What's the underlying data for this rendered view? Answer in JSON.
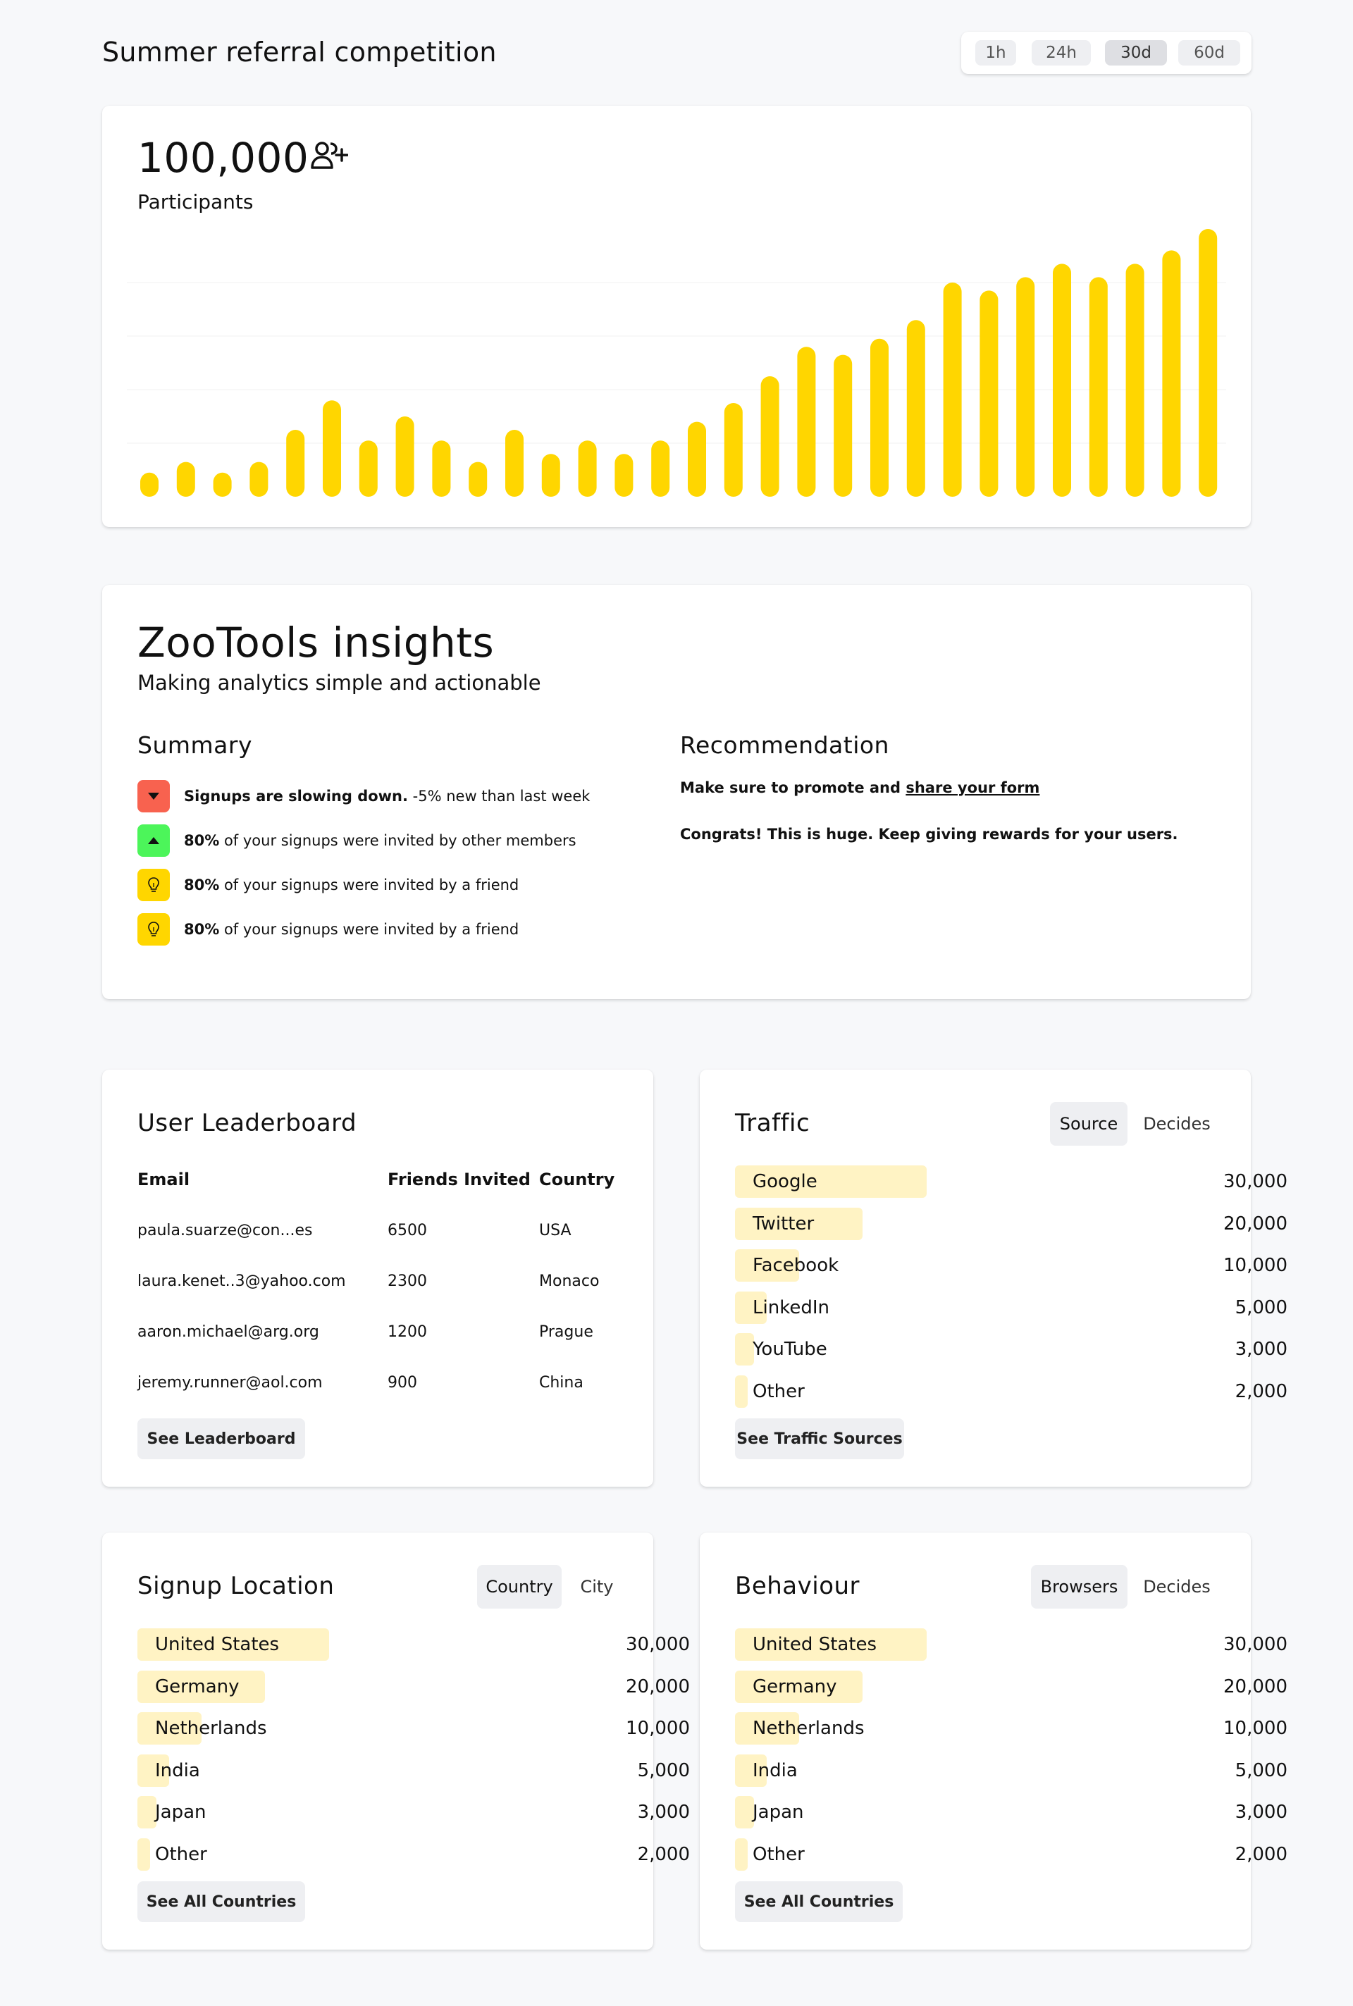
{
  "header": {
    "title": "Summer referral competition",
    "ranges": [
      {
        "label": "1h",
        "active": false
      },
      {
        "label": "24h",
        "active": false
      },
      {
        "label": "30d",
        "active": true
      },
      {
        "label": "60d",
        "active": false
      }
    ]
  },
  "participants": {
    "count": "100,000",
    "label": "Participants",
    "icon": "user-plus-icon"
  },
  "chart_data": {
    "type": "bar",
    "title": "",
    "xlabel": "",
    "ylabel": "",
    "ylim": [
      0,
      100
    ],
    "grid": true,
    "bar_color": "#ffd600",
    "values": [
      9,
      13,
      9,
      13,
      25,
      36,
      21,
      30,
      21,
      13,
      25,
      16,
      21,
      16,
      21,
      28,
      35,
      45,
      56,
      53,
      59,
      66,
      80,
      77,
      82,
      87,
      82,
      87,
      92,
      100
    ]
  },
  "insights": {
    "title": "ZooTools insights",
    "subtitle": "Making analytics simple and actionable",
    "summary_heading": "Summary",
    "recommendation_heading": "Recommendation",
    "summary": [
      {
        "icon": "triangle-down-icon",
        "color": "#f8624f",
        "bold": "Signups are slowing down.",
        "text": " -5% new than last week"
      },
      {
        "icon": "triangle-up-icon",
        "color": "#4cf55a",
        "bold": "80%",
        "text": " of your signups were invited by other members"
      },
      {
        "icon": "lightbulb-icon",
        "color": "#ffd600",
        "bold": "80%",
        "text": " of your signups were invited by a friend"
      },
      {
        "icon": "lightbulb-icon",
        "color": "#ffd600",
        "bold": "80%",
        "text": " of your signups were invited by a friend"
      }
    ],
    "recommendation": {
      "line1_prefix": "Make sure to promote and ",
      "line1_link": "share your form",
      "line2": "Congrats! This is huge. Keep giving rewards for your users."
    }
  },
  "leaderboard": {
    "title": "User Leaderboard",
    "columns": [
      "Email",
      "Friends Invited",
      "Country"
    ],
    "rows": [
      {
        "email": "paula.suarze@con...es",
        "invited": "6500",
        "country": "USA"
      },
      {
        "email": "laura.kenet..3@yahoo.com",
        "invited": "2300",
        "country": "Monaco"
      },
      {
        "email": "aaron.michael@arg.org",
        "invited": "1200",
        "country": "Prague"
      },
      {
        "email": "jeremy.runner@aol.com",
        "invited": "900",
        "country": "China"
      }
    ],
    "button": "See Leaderboard"
  },
  "traffic": {
    "title": "Traffic",
    "toggles": [
      {
        "label": "Source",
        "active": true
      },
      {
        "label": "Decides",
        "active": false
      }
    ],
    "items": [
      {
        "label": "Google",
        "value": "30,000",
        "share": 1.0
      },
      {
        "label": "Twitter",
        "value": "20,000",
        "share": 0.667
      },
      {
        "label": "Facebook",
        "value": "10,000",
        "share": 0.333
      },
      {
        "label": "LinkedIn",
        "value": "5,000",
        "share": 0.167
      },
      {
        "label": "YouTube",
        "value": "3,000",
        "share": 0.1
      },
      {
        "label": "Other",
        "value": "2,000",
        "share": 0.067
      }
    ],
    "button": "See Traffic Sources"
  },
  "signup_location": {
    "title": "Signup Location",
    "toggles": [
      {
        "label": "Country",
        "active": true
      },
      {
        "label": "City",
        "active": false
      }
    ],
    "items": [
      {
        "label": "United States",
        "value": "30,000",
        "share": 1.0
      },
      {
        "label": "Germany",
        "value": "20,000",
        "share": 0.667
      },
      {
        "label": "Netherlands",
        "value": "10,000",
        "share": 0.333
      },
      {
        "label": "India",
        "value": "5,000",
        "share": 0.167
      },
      {
        "label": "Japan",
        "value": "3,000",
        "share": 0.1
      },
      {
        "label": "Other",
        "value": "2,000",
        "share": 0.067
      }
    ],
    "button": "See All Countries"
  },
  "behaviour": {
    "title": "Behaviour",
    "toggles": [
      {
        "label": "Browsers",
        "active": true
      },
      {
        "label": "Decides",
        "active": false
      }
    ],
    "items": [
      {
        "label": "United States",
        "value": "30,000",
        "share": 1.0
      },
      {
        "label": "Germany",
        "value": "20,000",
        "share": 0.667
      },
      {
        "label": "Netherlands",
        "value": "10,000",
        "share": 0.333
      },
      {
        "label": "India",
        "value": "5,000",
        "share": 0.167
      },
      {
        "label": "Japan",
        "value": "3,000",
        "share": 0.1
      },
      {
        "label": "Other",
        "value": "2,000",
        "share": 0.067
      }
    ],
    "button": "See All Countries"
  }
}
